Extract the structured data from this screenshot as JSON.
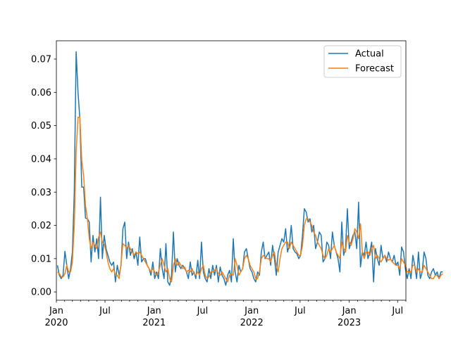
{
  "chart_data": {
    "type": "line",
    "title": "",
    "xlabel": "",
    "ylabel": "",
    "x_start": "2020-01-05",
    "x_step_days": 7,
    "xlim": [
      "2020-01-01",
      "2023-08-01"
    ],
    "ylim": [
      -0.0025,
      0.0755
    ],
    "grid": false,
    "legend_position": "top-right",
    "y_ticks": [
      "0.00",
      "0.01",
      "0.02",
      "0.03",
      "0.04",
      "0.05",
      "0.06",
      "0.07"
    ],
    "y_tick_values": [
      0,
      0.01,
      0.02,
      0.03,
      0.04,
      0.05,
      0.06,
      0.07
    ],
    "x_ticks": [
      {
        "date": "2020-01-01",
        "label": "Jan",
        "year": "2020"
      },
      {
        "date": "2020-07-01",
        "label": "Jul",
        "year": ""
      },
      {
        "date": "2021-01-01",
        "label": "Jan",
        "year": "2021"
      },
      {
        "date": "2021-07-01",
        "label": "Jul",
        "year": ""
      },
      {
        "date": "2022-01-01",
        "label": "Jan",
        "year": "2022"
      },
      {
        "date": "2022-07-01",
        "label": "Jul",
        "year": ""
      },
      {
        "date": "2023-01-01",
        "label": "Jan",
        "year": "2023"
      },
      {
        "date": "2023-07-01",
        "label": "Jul",
        "year": ""
      }
    ],
    "series": [
      {
        "name": "Actual",
        "color": "#1f77b4",
        "values": [
          0.008,
          0.005,
          0.004,
          0.005,
          0.0122,
          0.008,
          0.004,
          0.007,
          0.012,
          0.03,
          0.0722,
          0.06,
          0.052,
          0.0315,
          0.0315,
          0.0222,
          0.022,
          0.021,
          0.009,
          0.017,
          0.012,
          0.016,
          0.01,
          0.0285,
          0.01,
          0.017,
          0.013,
          0.011,
          0.009,
          0.008,
          0.009,
          0.003,
          0.008,
          0.005,
          0.008,
          0.019,
          0.021,
          0.01,
          0.015,
          0.011,
          0.013,
          0.01,
          0.012,
          0.008,
          0.0165,
          0.009,
          0.01,
          0.01,
          0.008,
          0.007,
          0.005,
          0.009,
          0.004,
          0.006,
          0.004,
          0.013,
          0.007,
          0.004,
          0.0145,
          0.003,
          0.002,
          0.005,
          0.018,
          0.006,
          0.01,
          0.008,
          0.007,
          0.008,
          0.007,
          0.006,
          0.004,
          0.009,
          0.005,
          0.006,
          0.004,
          0.0095,
          0.004,
          0.015,
          0.006,
          0.004,
          0.003,
          0.007,
          0.004,
          0.008,
          0.005,
          0.008,
          0.003,
          0.0075,
          0.005,
          0.004,
          0.002,
          0.005,
          0.0065,
          0.003,
          0.016,
          0.006,
          0.003,
          0.008,
          0.006,
          0.007,
          0.012,
          0.013,
          0.01,
          0.007,
          0.006,
          0.004,
          0.003,
          0.006,
          0.005,
          0.012,
          0.015,
          0.01,
          0.011,
          0.012,
          0.008,
          0.014,
          0.01,
          0.005,
          0.012,
          0.014,
          0.016,
          0.015,
          0.019,
          0.012,
          0.014,
          0.02,
          0.013,
          0.012,
          0.0115,
          0.01,
          0.011,
          0.017,
          0.025,
          0.024,
          0.021,
          0.022,
          0.018,
          0.02,
          0.013,
          0.015,
          0.018,
          0.017,
          0.009,
          0.01,
          0.015,
          0.014,
          0.01,
          0.018,
          0.014,
          0.012,
          0.01,
          0.006,
          0.021,
          0.011,
          0.013,
          0.025,
          0.013,
          0.015,
          0.017,
          0.018,
          0.013,
          0.027,
          0.0075,
          0.012,
          0.011,
          0.015,
          0.01,
          0.012,
          0.015,
          0.003,
          0.013,
          0.01,
          0.008,
          0.014,
          0.01,
          0.011,
          0.009,
          0.012,
          0.01,
          0.009,
          0.011,
          0.008,
          0.009,
          0.005,
          0.0135,
          0.012,
          0.007,
          0.004,
          0.007,
          0.004,
          0.011,
          0.008,
          0.004,
          0.012,
          0.004,
          0.006,
          0.012,
          0.01,
          0.005,
          0.004,
          0.006,
          0.007,
          0.005,
          0.006,
          0.004,
          0.006,
          0.006
        ]
      },
      {
        "name": "Forecast",
        "color": "#ff7f0e",
        "values": [
          0.006,
          0.0055,
          0.0045,
          0.0045,
          0.0055,
          0.008,
          0.006,
          0.006,
          0.009,
          0.02,
          0.042,
          0.0525,
          0.0525,
          0.0395,
          0.035,
          0.026,
          0.022,
          0.016,
          0.013,
          0.015,
          0.014,
          0.013,
          0.0165,
          0.018,
          0.015,
          0.0145,
          0.012,
          0.009,
          0.007,
          0.006,
          0.007,
          0.005,
          0.005,
          0.004,
          0.0085,
          0.0145,
          0.014,
          0.013,
          0.014,
          0.013,
          0.012,
          0.011,
          0.012,
          0.0115,
          0.012,
          0.011,
          0.01,
          0.009,
          0.008,
          0.007,
          0.006,
          0.007,
          0.006,
          0.005,
          0.006,
          0.008,
          0.01,
          0.008,
          0.006,
          0.007,
          0.004,
          0.003,
          0.008,
          0.01,
          0.008,
          0.009,
          0.008,
          0.007,
          0.0075,
          0.006,
          0.0065,
          0.006,
          0.007,
          0.0055,
          0.005,
          0.006,
          0.005,
          0.007,
          0.008,
          0.005,
          0.004,
          0.0045,
          0.006,
          0.006,
          0.0065,
          0.007,
          0.0055,
          0.005,
          0.006,
          0.005,
          0.004,
          0.003,
          0.005,
          0.0055,
          0.005,
          0.01,
          0.008,
          0.005,
          0.006,
          0.007,
          0.01,
          0.011,
          0.01,
          0.008,
          0.007,
          0.006,
          0.004,
          0.004,
          0.006,
          0.01,
          0.011,
          0.0105,
          0.01,
          0.01,
          0.009,
          0.011,
          0.012,
          0.008,
          0.006,
          0.01,
          0.013,
          0.014,
          0.015,
          0.015,
          0.013,
          0.015,
          0.014,
          0.013,
          0.012,
          0.011,
          0.011,
          0.014,
          0.02,
          0.022,
          0.022,
          0.021,
          0.02,
          0.018,
          0.017,
          0.015,
          0.014,
          0.013,
          0.011,
          0.01,
          0.011,
          0.013,
          0.012,
          0.013,
          0.014,
          0.012,
          0.011,
          0.01,
          0.015,
          0.013,
          0.012,
          0.017,
          0.015,
          0.014,
          0.016,
          0.019,
          0.018,
          0.016,
          0.0205,
          0.012,
          0.01,
          0.012,
          0.012,
          0.011,
          0.013,
          0.014,
          0.01,
          0.011,
          0.01,
          0.009,
          0.01,
          0.011,
          0.01,
          0.0095,
          0.01,
          0.009,
          0.0085,
          0.008,
          0.008,
          0.007,
          0.01,
          0.009,
          0.008,
          0.006,
          0.006,
          0.006,
          0.008,
          0.008,
          0.006,
          0.007,
          0.006,
          0.006,
          0.008,
          0.007,
          0.006,
          0.005,
          0.004,
          0.004,
          0.005,
          0.005,
          0.004,
          0.005,
          0.0055
        ]
      }
    ]
  }
}
